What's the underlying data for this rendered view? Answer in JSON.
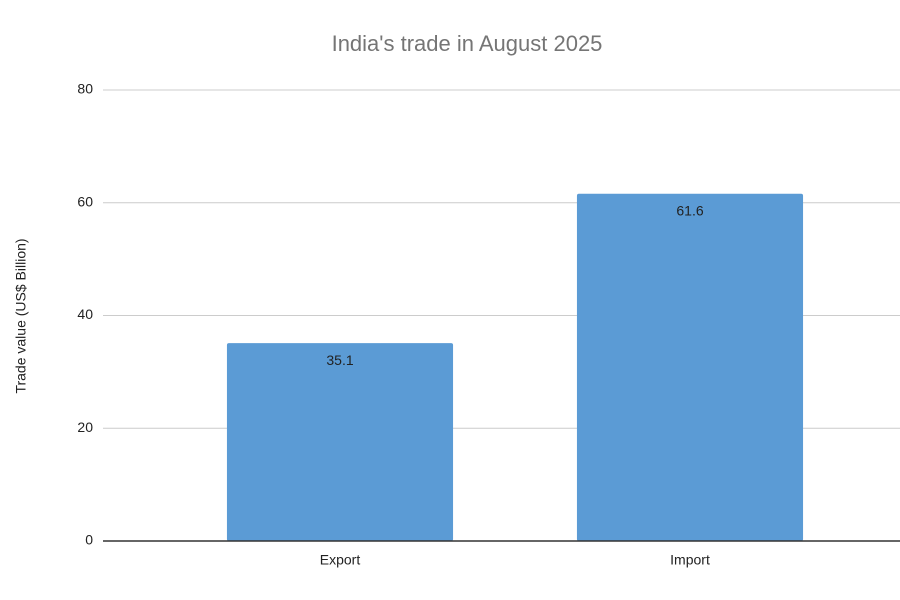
{
  "chart_data": {
    "type": "bar",
    "title": "India's trade in August 2025",
    "y_label": "Trade value (US$ Billion)",
    "categories": [
      "Export",
      "Import"
    ],
    "values": [
      35.1,
      61.6
    ],
    "color": "#5b9bd5",
    "ylim": [
      0,
      80
    ],
    "yticks": [
      0,
      20,
      40,
      60,
      80
    ],
    "grid": true,
    "data_labels": true
  }
}
